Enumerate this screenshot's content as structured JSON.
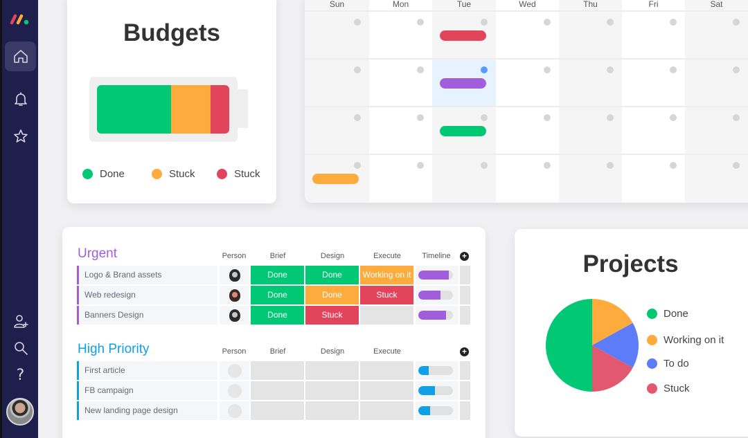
{
  "sidebar": {
    "logo": "monday-logo",
    "top_items": [
      {
        "icon": "home-icon",
        "active": true
      },
      {
        "icon": "bell-icon",
        "active": false
      },
      {
        "icon": "star-icon",
        "active": false
      }
    ],
    "bottom_items": [
      {
        "icon": "add-user-icon"
      },
      {
        "icon": "search-icon"
      },
      {
        "icon": "help-icon",
        "glyph": "?"
      },
      {
        "icon": "avatar"
      }
    ]
  },
  "budgets": {
    "title": "Budgets",
    "segments": [
      {
        "label": "Done",
        "color": "#00c875",
        "pct": 56
      },
      {
        "label": "Stuck",
        "color": "#fdab3d",
        "pct": 30
      },
      {
        "label": "Stuck",
        "color": "#e2445c",
        "pct": 14
      }
    ],
    "legend": [
      "Done",
      "Stuck",
      "Stuck"
    ]
  },
  "calendar": {
    "days": [
      "Sun",
      "Mon",
      "Tue",
      "Wed",
      "Thu",
      "Fri",
      "Sat"
    ],
    "events": [
      {
        "week": 0,
        "day": 2,
        "color": "#e2445c"
      },
      {
        "week": 1,
        "day": 2,
        "color": "#a25ddc"
      },
      {
        "week": 2,
        "day": 2,
        "color": "#00c875"
      },
      {
        "week": 3,
        "day": 0,
        "color": "#fdab3d"
      }
    ],
    "highlight": {
      "week": 1,
      "day": 2,
      "dot_color": "#579bfc"
    }
  },
  "board": {
    "groups": [
      {
        "title": "Urgent",
        "color": "#a25ddc",
        "columns": [
          "Person",
          "Brief",
          "Design",
          "Execute",
          "Timeline"
        ],
        "rows": [
          {
            "name": "Logo & Brand assets",
            "brief": "Done",
            "design": "Done",
            "execute": "Working on it",
            "timeline_pct": 88
          },
          {
            "name": "Web redesign",
            "brief": "Done",
            "design": "Done",
            "execute": "Stuck",
            "timeline_pct": 63
          },
          {
            "name": "Banners Design",
            "brief": "Done",
            "design": "Stuck",
            "execute": "",
            "timeline_pct": 80
          }
        ]
      },
      {
        "title": "High Priority",
        "color": "#0fa0e6",
        "columns": [
          "Person",
          "Brief",
          "Design",
          "Execute"
        ],
        "rows": [
          {
            "name": "First article",
            "timeline_pct": 30
          },
          {
            "name": "FB campaign",
            "timeline_pct": 47
          },
          {
            "name": "New landing page design",
            "timeline_pct": 33
          }
        ]
      }
    ],
    "status_colors": {
      "Done": "#00c875",
      "Working on it": "#fdab3d",
      "Stuck": "#e2445c",
      "empty": "#e4e4e4"
    }
  },
  "projects": {
    "title": "Projects",
    "legend": [
      "Done",
      "Working on it",
      "To do",
      "Stuck"
    ]
  },
  "chart_data": {
    "type": "pie",
    "title": "Projects",
    "categories": [
      "Done",
      "Working on it",
      "To do",
      "Stuck"
    ],
    "values": [
      50,
      17,
      16,
      17
    ],
    "colors": [
      "#00c875",
      "#fdab3d",
      "#5c7cfa",
      "#e2586f"
    ],
    "legend_position": "right"
  }
}
